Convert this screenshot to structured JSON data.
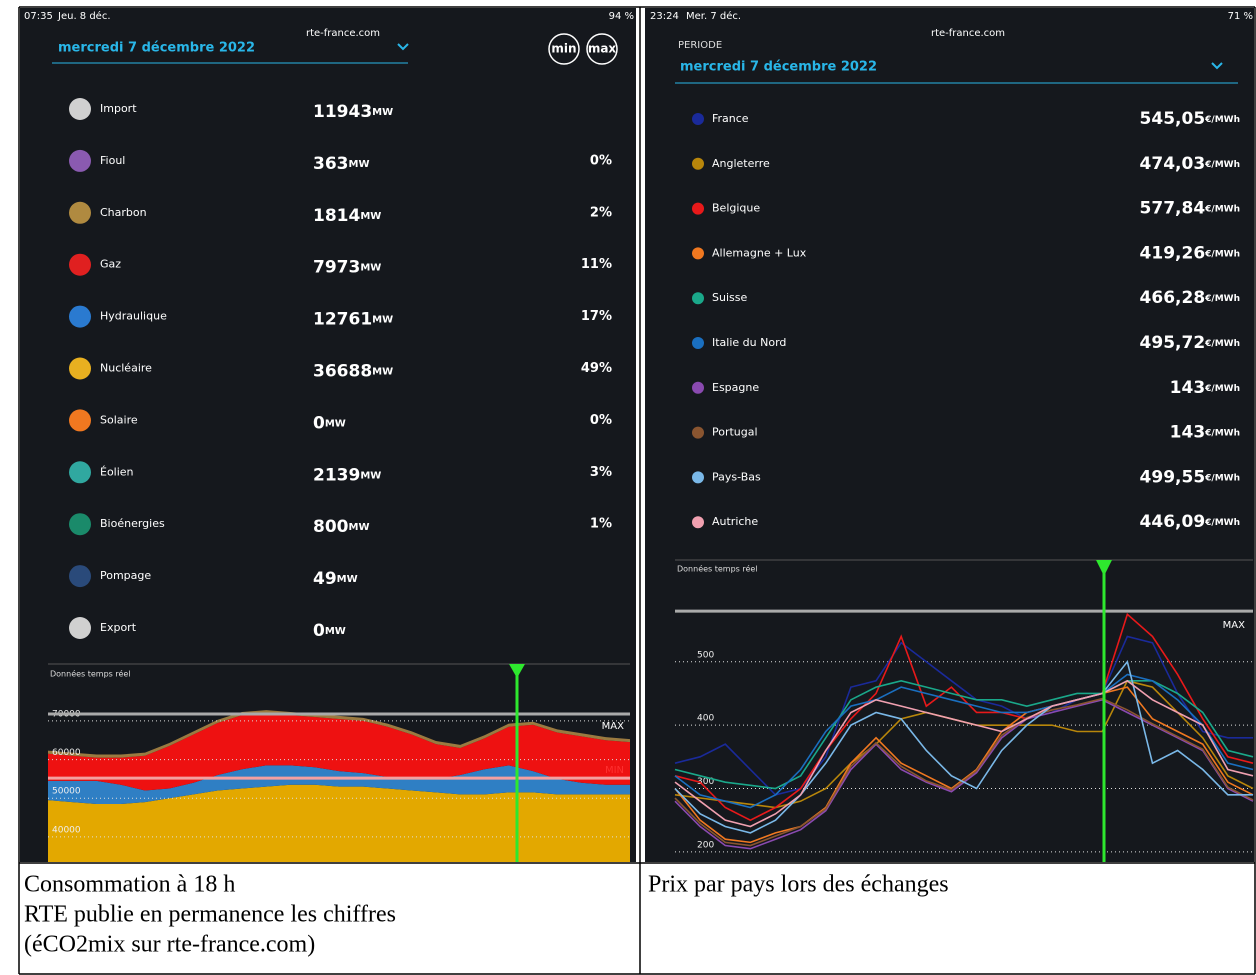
{
  "left": {
    "status": {
      "time": "07:35",
      "date": "Jeu. 8 déc.",
      "url": "rte-france.com",
      "battery": "94 %"
    },
    "date_select": "mercredi 7 décembre 2022",
    "buttons": [
      "min",
      "max"
    ],
    "rows": [
      {
        "label": "Import",
        "value": "11943",
        "unit": "MW",
        "color": "#d0d0d0"
      },
      {
        "label": "Fioul",
        "value": "363",
        "unit": "MW",
        "share": "0%",
        "color": "#8a5ab0"
      },
      {
        "label": "Charbon",
        "value": "1814",
        "unit": "MW",
        "share": "2%",
        "color": "#b08a40"
      },
      {
        "label": "Gaz",
        "value": "7973",
        "unit": "MW",
        "share": "11%",
        "color": "#e02020"
      },
      {
        "label": "Hydraulique",
        "value": "12761",
        "unit": "MW",
        "share": "17%",
        "color": "#2a7ad0"
      },
      {
        "label": "Nucléaire",
        "value": "36688",
        "unit": "MW",
        "share": "49%",
        "color": "#e8b020"
      },
      {
        "label": "Solaire",
        "value": "0",
        "unit": "MW",
        "share": "0%",
        "color": "#f07820"
      },
      {
        "label": "Éolien",
        "value": "2139",
        "unit": "MW",
        "share": "3%",
        "color": "#30a8a0"
      },
      {
        "label": "Bioénergies",
        "value": "800",
        "unit": "MW",
        "share": "1%",
        "color": "#1a8a6a"
      },
      {
        "label": "Pompage",
        "value": "49",
        "unit": "MW",
        "color": "#2a4a7a"
      },
      {
        "label": "Export",
        "value": "0",
        "unit": "MW",
        "color": "#d0d0d0"
      }
    ],
    "chart": {
      "type": "area",
      "label": "Données temps réel",
      "ylim": [
        33500,
        78000
      ],
      "yticks": [
        40000,
        50000,
        60000,
        70000
      ],
      "max_line": 71800,
      "max_label": "MAX",
      "min_line": 55200,
      "min_label": "MIN",
      "series": [
        {
          "color": "#e3a800",
          "values": [
            49500,
            49000,
            48500,
            48500,
            49000,
            50000,
            51000,
            52000,
            52500,
            53000,
            53500,
            53500,
            53000,
            53000,
            52500,
            52000,
            51500,
            51000,
            51000,
            51500,
            51500,
            51000,
            51000,
            51000,
            51000
          ]
        },
        {
          "color": "#2f7fc4",
          "values": [
            5000,
            5500,
            6000,
            5000,
            3000,
            2500,
            3000,
            4000,
            5000,
            5500,
            5000,
            4500,
            4000,
            3500,
            3000,
            3000,
            3500,
            5000,
            6500,
            7000,
            5500,
            4000,
            3000,
            2500,
            2500
          ]
        },
        {
          "color": "#ee1111",
          "values": [
            7000,
            6500,
            6000,
            7000,
            9000,
            11000,
            12500,
            13500,
            14000,
            13500,
            13000,
            13000,
            13500,
            13500,
            13000,
            11500,
            9000,
            7000,
            8000,
            10000,
            12000,
            12000,
            12000,
            11500,
            11000
          ]
        },
        {
          "color": "#9a7a40",
          "values": [
            800,
            800,
            800,
            800,
            800,
            800,
            800,
            800,
            800,
            800,
            800,
            800,
            800,
            800,
            800,
            800,
            800,
            800,
            800,
            800,
            800,
            800,
            800,
            800,
            800
          ]
        }
      ]
    },
    "caption": [
      "Consommation à 18 h",
      "RTE publie en permanence les chiffres",
      "(éCO2mix sur rte-france.com)"
    ]
  },
  "right": {
    "status": {
      "time": "23:24",
      "date": "Mer. 7 déc.",
      "url": "rte-france.com",
      "battery": "71 %"
    },
    "period_label": "PERIODE",
    "date_select": "mercredi 7 décembre 2022",
    "rows": [
      {
        "name": "France",
        "price": "545,05",
        "unit": "€/MWh",
        "color": "#1a2a9a"
      },
      {
        "name": "Angleterre",
        "price": "474,03",
        "unit": "€/MWh",
        "color": "#b8860b"
      },
      {
        "name": "Belgique",
        "price": "577,84",
        "unit": "€/MWh",
        "color": "#e8191a"
      },
      {
        "name": "Allemagne + Lux",
        "price": "419,26",
        "unit": "€/MWh",
        "color": "#f07820"
      },
      {
        "name": "Suisse",
        "price": "466,28",
        "unit": "€/MWh",
        "color": "#1aa88a"
      },
      {
        "name": "Italie du Nord",
        "price": "495,72",
        "unit": "€/MWh",
        "color": "#1a6fc0"
      },
      {
        "name": "Espagne",
        "price": "143",
        "unit": "€/MWh",
        "color": "#8a4ab0"
      },
      {
        "name": "Portugal",
        "price": "143",
        "unit": "€/MWh",
        "color": "#8a5530"
      },
      {
        "name": "Pays-Bas",
        "price": "499,55",
        "unit": "€/MWh",
        "color": "#7ab8e8"
      },
      {
        "name": "Autriche",
        "price": "446,09",
        "unit": "€/MWh",
        "color": "#f0a0b0"
      }
    ],
    "chart": {
      "type": "line",
      "label": "Données temps réel",
      "ylim": [
        184,
        637
      ],
      "yticks": [
        200,
        300,
        400,
        500
      ],
      "max_line": 580,
      "max_label": "MAX",
      "series": [
        {
          "color": "#1a2a9a",
          "values": [
            340,
            350,
            370,
            330,
            290,
            300,
            350,
            460,
            470,
            530,
            500,
            470,
            440,
            430,
            410,
            420,
            440,
            450,
            540,
            530,
            450,
            390,
            380,
            380
          ]
        },
        {
          "color": "#b8860b",
          "values": [
            290,
            285,
            280,
            275,
            270,
            280,
            300,
            340,
            370,
            410,
            420,
            410,
            400,
            400,
            400,
            400,
            390,
            390,
            470,
            460,
            420,
            380,
            320,
            300
          ]
        },
        {
          "color": "#e8191a",
          "values": [
            320,
            310,
            270,
            250,
            270,
            300,
            360,
            410,
            450,
            540,
            430,
            460,
            420,
            420,
            410,
            430,
            440,
            450,
            575,
            540,
            480,
            410,
            350,
            340
          ]
        },
        {
          "color": "#f07820",
          "values": [
            300,
            250,
            220,
            215,
            230,
            240,
            270,
            340,
            380,
            340,
            320,
            300,
            330,
            390,
            420,
            430,
            440,
            450,
            460,
            410,
            390,
            370,
            310,
            290
          ]
        },
        {
          "color": "#1aa88a",
          "values": [
            330,
            320,
            310,
            305,
            300,
            320,
            380,
            440,
            460,
            470,
            460,
            450,
            440,
            440,
            430,
            440,
            450,
            450,
            470,
            470,
            450,
            420,
            360,
            350
          ]
        },
        {
          "color": "#1a6fc0",
          "values": [
            320,
            290,
            280,
            270,
            290,
            330,
            390,
            430,
            440,
            460,
            450,
            440,
            430,
            420,
            420,
            430,
            440,
            450,
            480,
            470,
            440,
            400,
            340,
            330
          ]
        },
        {
          "color": "#8a4ab0",
          "values": [
            280,
            240,
            210,
            205,
            220,
            235,
            265,
            330,
            370,
            330,
            310,
            295,
            325,
            380,
            410,
            420,
            430,
            440,
            420,
            400,
            380,
            360,
            300,
            280
          ]
        },
        {
          "color": "#8a5530",
          "values": [
            285,
            245,
            215,
            210,
            225,
            240,
            268,
            335,
            372,
            335,
            312,
            298,
            328,
            384,
            412,
            424,
            432,
            442,
            424,
            402,
            382,
            362,
            302,
            282
          ]
        },
        {
          "color": "#7ab8e8",
          "values": [
            300,
            260,
            240,
            230,
            250,
            290,
            340,
            400,
            420,
            410,
            360,
            320,
            300,
            360,
            400,
            430,
            440,
            450,
            500,
            340,
            360,
            330,
            290,
            290
          ]
        },
        {
          "color": "#f0a0b0",
          "values": [
            310,
            280,
            250,
            240,
            260,
            290,
            360,
            420,
            440,
            430,
            420,
            410,
            400,
            390,
            410,
            430,
            440,
            450,
            470,
            440,
            420,
            400,
            330,
            320
          ]
        }
      ]
    },
    "caption": [
      "Prix par pays lors des échanges"
    ]
  }
}
